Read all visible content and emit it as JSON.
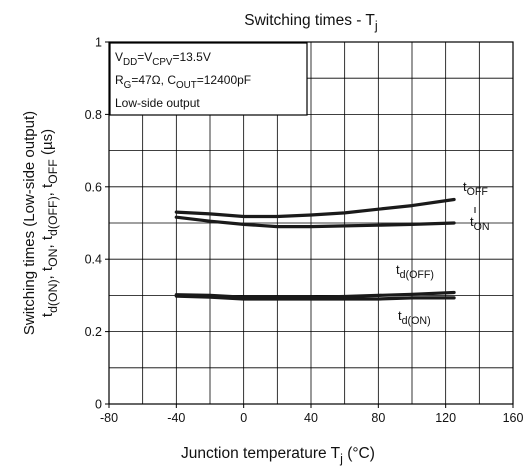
{
  "chart_data": {
    "type": "line",
    "title": "Switching times - T",
    "title_sub": "j",
    "xlabel": {
      "main": "Junction temperature",
      "var": "T",
      "var_sub": "j",
      "unit": "(°C)"
    },
    "ylabel": {
      "line1": "Switching times (Low-side output)",
      "line2": [
        {
          "t": "t"
        },
        {
          "t": "d(ON)",
          "sub": true
        },
        {
          "t": ", t"
        },
        {
          "t": "ON",
          "sub": true
        },
        {
          "t": ", t"
        },
        {
          "t": "d(OFF)",
          "sub": true
        },
        {
          "t": ", t"
        },
        {
          "t": "OFF",
          "sub": true
        },
        {
          "t": "  (µs)"
        }
      ]
    },
    "xlim": [
      -80,
      160
    ],
    "ylim": [
      0,
      1
    ],
    "x_ticks": [
      -80,
      -40,
      0,
      40,
      80,
      120,
      160
    ],
    "x_tick_labels": [
      "-80",
      "-40",
      "0",
      "40",
      "80",
      "120",
      "160"
    ],
    "y_ticks": [
      0,
      0.2,
      0.4,
      0.6,
      0.8,
      1
    ],
    "y_tick_labels": [
      "0",
      "0.2",
      "0.4",
      "0.6",
      "0.8",
      "1"
    ],
    "grid": true,
    "x_grid_step": 20,
    "y_grid_step": 0.1,
    "line_color": "#1a1a1a",
    "conditions_box": [
      [
        {
          "t": "V"
        },
        {
          "t": "DD",
          "sub": true
        },
        {
          "t": "=V"
        },
        {
          "t": "CPV",
          "sub": true
        },
        {
          "t": "=13.5V"
        }
      ],
      [
        {
          "t": "R"
        },
        {
          "t": "G",
          "sub": true
        },
        {
          "t": "=47Ω, C"
        },
        {
          "t": "OUT",
          "sub": true
        },
        {
          "t": "=12400pF"
        }
      ],
      [
        {
          "t": "Low-side output"
        }
      ]
    ],
    "series": [
      {
        "name": "tOFF",
        "label": [
          {
            "t": "t"
          },
          {
            "t": "OFF",
            "sub": true
          }
        ],
        "x": [
          -40,
          -20,
          0,
          20,
          40,
          60,
          80,
          100,
          125
        ],
        "y": [
          0.53,
          0.525,
          0.518,
          0.518,
          0.522,
          0.528,
          0.538,
          0.548,
          0.565
        ]
      },
      {
        "name": "tON",
        "label": [
          {
            "t": "t"
          },
          {
            "t": "ON",
            "sub": true
          }
        ],
        "x": [
          -40,
          -20,
          0,
          20,
          40,
          60,
          80,
          100,
          125
        ],
        "y": [
          0.516,
          0.505,
          0.496,
          0.49,
          0.49,
          0.492,
          0.494,
          0.496,
          0.5
        ]
      },
      {
        "name": "td(OFF)",
        "label": [
          {
            "t": "t"
          },
          {
            "t": "d(OFF)",
            "sub": true
          }
        ],
        "x": [
          -40,
          -20,
          0,
          20,
          40,
          60,
          80,
          100,
          125
        ],
        "y": [
          0.302,
          0.3,
          0.295,
          0.295,
          0.295,
          0.297,
          0.3,
          0.303,
          0.308
        ]
      },
      {
        "name": "td(ON)",
        "label": [
          {
            "t": "t"
          },
          {
            "t": "d(ON)",
            "sub": true
          }
        ],
        "x": [
          -40,
          -20,
          0,
          20,
          40,
          60,
          80,
          100,
          125
        ],
        "y": [
          0.298,
          0.295,
          0.29,
          0.29,
          0.29,
          0.29,
          0.29,
          0.293,
          0.293
        ]
      }
    ]
  }
}
